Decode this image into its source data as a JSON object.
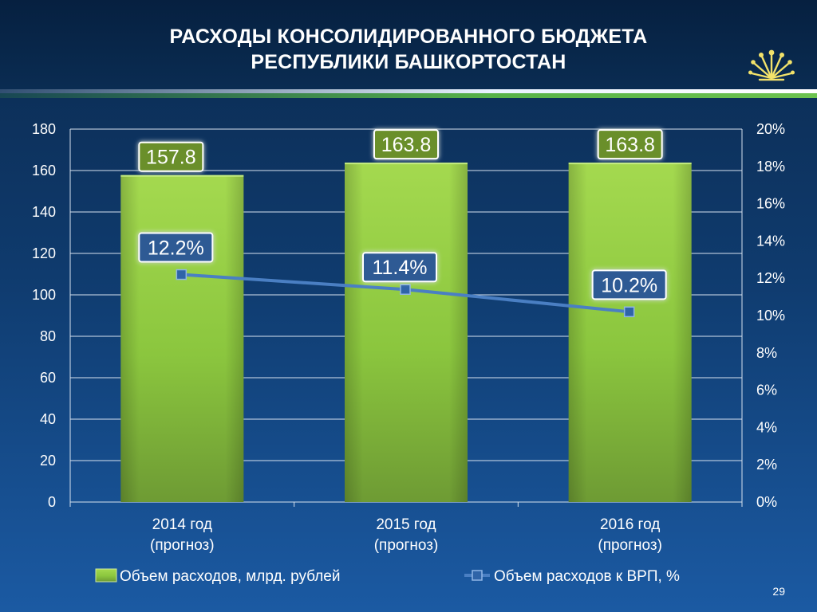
{
  "title_lines": [
    "РАСХОДЫ КОНСОЛИДИРОВАННОГО БЮДЖЕТА",
    "РЕСПУБЛИКИ БАШКОРТОСТАН"
  ],
  "page_number": "29",
  "colors": {
    "bar": "#8bc63e",
    "bar_label_bg": "#6b8f2b",
    "line": "#4a7fc3",
    "line_label_bg": "#2d5a94",
    "marker": "#2f64a8"
  },
  "chart_data": {
    "type": "bar",
    "categories": [
      [
        "2014 год",
        "(прогноз)"
      ],
      [
        "2015 год",
        "(прогноз)"
      ],
      [
        "2016 год",
        "(прогноз)"
      ]
    ],
    "ylim": [
      0,
      180
    ],
    "y_ticks": [
      0,
      20,
      40,
      60,
      80,
      100,
      120,
      140,
      160,
      180
    ],
    "y2lim": [
      0,
      20
    ],
    "y2_ticks": [
      "0%",
      "2%",
      "4%",
      "6%",
      "8%",
      "10%",
      "12%",
      "14%",
      "16%",
      "18%",
      "20%"
    ],
    "grid": true,
    "legend_position": "bottom",
    "series": [
      {
        "name": "Объем расходов, млрд. рублей",
        "type": "bar",
        "axis": "left",
        "values": [
          157.8,
          163.8,
          163.8
        ],
        "labels": [
          "157.8",
          "163.8",
          "163.8"
        ]
      },
      {
        "name": "Объем расходов к ВРП, %",
        "type": "line",
        "axis": "right",
        "values": [
          12.2,
          11.4,
          10.2
        ],
        "labels": [
          "12.2%",
          "11.4%",
          "10.2%"
        ]
      }
    ]
  }
}
